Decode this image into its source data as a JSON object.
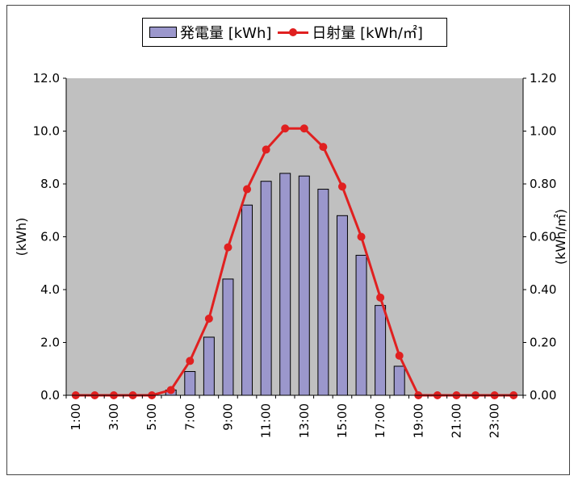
{
  "chart_data": {
    "type": "bar+line",
    "categories": [
      "1:00",
      "2:00",
      "3:00",
      "4:00",
      "5:00",
      "6:00",
      "7:00",
      "8:00",
      "9:00",
      "10:00",
      "11:00",
      "12:00",
      "13:00",
      "14:00",
      "15:00",
      "16:00",
      "17:00",
      "18:00",
      "19:00",
      "20:00",
      "21:00",
      "22:00",
      "23:00",
      "24:00"
    ],
    "x_tick_labels": [
      "1:00",
      "3:00",
      "5:00",
      "7:00",
      "9:00",
      "11:00",
      "13:00",
      "15:00",
      "17:00",
      "19:00",
      "21:00",
      "23:00"
    ],
    "series": [
      {
        "name": "発電量 [kWh]",
        "type": "bar",
        "axis": "left",
        "color": "#9b97cc",
        "values": [
          0,
          0,
          0,
          0,
          0,
          0.2,
          0.9,
          2.2,
          4.4,
          7.2,
          8.1,
          8.4,
          8.3,
          7.8,
          6.8,
          5.3,
          3.4,
          1.1,
          0,
          0,
          0,
          0,
          0,
          0
        ]
      },
      {
        "name": "日射量 [kWh/㎡]",
        "type": "line",
        "axis": "right",
        "color": "#e02020",
        "values": [
          0,
          0,
          0,
          0,
          0,
          0.02,
          0.13,
          0.29,
          0.56,
          0.78,
          0.93,
          1.01,
          1.01,
          0.94,
          0.79,
          0.6,
          0.37,
          0.15,
          0,
          0,
          0,
          0,
          0,
          0
        ]
      }
    ],
    "y_left": {
      "label": "(kWh)",
      "min": 0,
      "max": 12,
      "ticks": [
        "0.0",
        "2.0",
        "4.0",
        "6.0",
        "8.0",
        "10.0",
        "12.0"
      ]
    },
    "y_right": {
      "label": "(kWh/㎡)",
      "min": 0,
      "max": 1.2,
      "ticks": [
        "0.00",
        "0.20",
        "0.40",
        "0.60",
        "0.80",
        "1.00",
        "1.20"
      ]
    },
    "plot_background": "#c0c0c0",
    "grid": false,
    "legend_position": "top"
  }
}
